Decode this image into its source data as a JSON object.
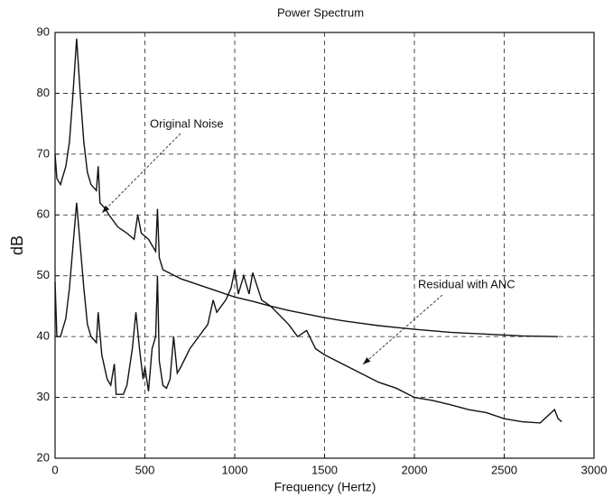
{
  "chart_data": {
    "type": "line",
    "title": "Power Spectrum",
    "xlabel": "Frequency (Hertz)",
    "ylabel": "dB",
    "xlim": [
      0,
      3000
    ],
    "xticks": [
      0,
      500,
      1000,
      1500,
      2000,
      2500,
      3000
    ],
    "ylim": [
      20,
      90
    ],
    "yticks": [
      20,
      30,
      40,
      50,
      60,
      70,
      80,
      90
    ],
    "grid": true,
    "annotations": [
      {
        "text": "Original Noise"
      },
      {
        "text": "Residual with ANC"
      }
    ],
    "series": [
      {
        "name": "Original Noise",
        "color": "#111111",
        "x": [
          0,
          10,
          30,
          60,
          80,
          100,
          120,
          140,
          160,
          180,
          200,
          230,
          240,
          250,
          280,
          300,
          350,
          400,
          440,
          460,
          480,
          520,
          540,
          560,
          570,
          580,
          600,
          700,
          800,
          900,
          1000,
          1100,
          1200,
          1300,
          1400,
          1500,
          1600,
          1700,
          1800,
          1900,
          2000,
          2200,
          2400,
          2600,
          2800
        ],
        "values": [
          70,
          66,
          65,
          68,
          72,
          80,
          89,
          80,
          72,
          67,
          65,
          64,
          68,
          62,
          61,
          60,
          58,
          57,
          56,
          60,
          57,
          56,
          55,
          54,
          61,
          53,
          51,
          49.5,
          48.5,
          47.5,
          46.5,
          45.8,
          45,
          44.3,
          43.7,
          43.1,
          42.6,
          42.2,
          41.8,
          41.5,
          41.2,
          40.7,
          40.4,
          40.1,
          40
        ]
      },
      {
        "name": "Residual with ANC",
        "color": "#111111",
        "x": [
          0,
          10,
          30,
          60,
          80,
          100,
          120,
          140,
          160,
          180,
          200,
          230,
          240,
          260,
          290,
          310,
          330,
          340,
          380,
          400,
          430,
          450,
          470,
          490,
          500,
          520,
          540,
          560,
          570,
          580,
          600,
          620,
          640,
          660,
          680,
          700,
          750,
          800,
          850,
          880,
          900,
          950,
          980,
          1000,
          1020,
          1050,
          1080,
          1100,
          1150,
          1200,
          1300,
          1350,
          1400,
          1450,
          1500,
          1600,
          1700,
          1800,
          1900,
          2000,
          2100,
          2200,
          2300,
          2400,
          2500,
          2600,
          2700,
          2780,
          2800,
          2820
        ],
        "values": [
          49,
          40,
          40,
          43,
          48,
          55,
          62,
          55,
          48,
          42,
          40,
          39,
          44,
          37,
          33,
          32,
          35.5,
          30.5,
          30.5,
          32,
          38,
          44,
          38,
          33,
          35,
          31,
          38,
          40,
          50,
          36,
          32,
          31.5,
          33,
          40,
          34,
          35,
          38,
          40,
          42,
          46,
          44,
          46,
          48,
          51,
          47,
          50,
          47,
          50.5,
          46,
          45,
          42,
          40,
          41,
          38,
          37,
          35.5,
          34,
          32.5,
          31.5,
          30,
          29.5,
          28.8,
          28,
          27.5,
          26.5,
          26,
          25.8,
          28,
          26.5,
          26
        ]
      }
    ]
  }
}
